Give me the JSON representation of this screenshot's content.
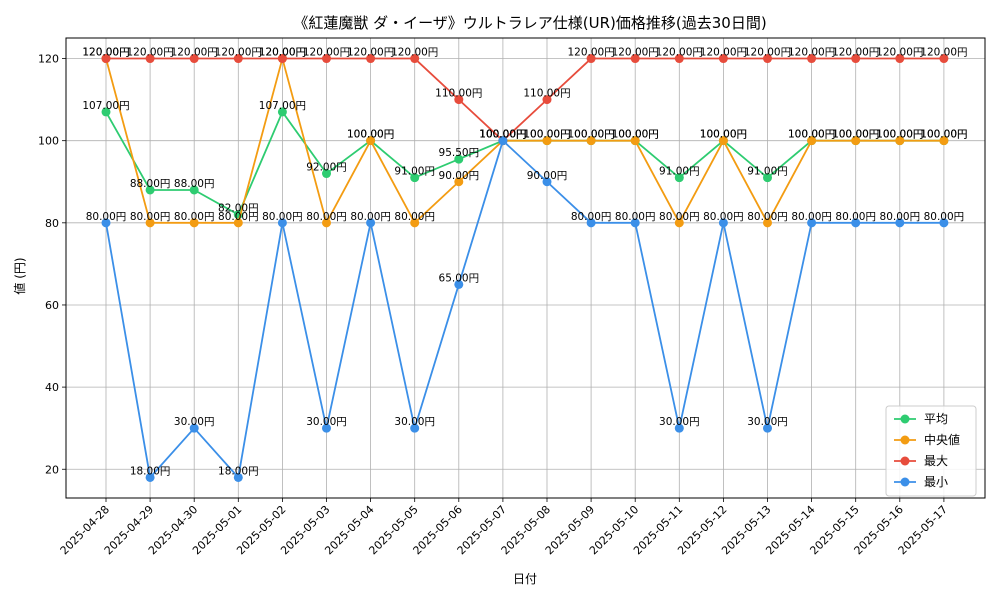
{
  "chart_data": {
    "type": "line",
    "title": "《紅蓮魔獣 ダ・イーザ》ウルトラレア仕様(UR)価格推移(過去30日間)",
    "xlabel": "日付",
    "ylabel": "値 (円)",
    "ylim": [
      13,
      125
    ],
    "yticks": [
      20,
      40,
      60,
      80,
      100,
      120
    ],
    "grid": true,
    "legend_position": "lower-right",
    "label_suffix": "円",
    "categories": [
      "2025-04-28",
      "2025-04-29",
      "2025-04-30",
      "2025-05-01",
      "2025-05-02",
      "2025-05-03",
      "2025-05-04",
      "2025-05-05",
      "2025-05-06",
      "2025-05-07",
      "2025-05-08",
      "2025-05-09",
      "2025-05-10",
      "2025-05-11",
      "2025-05-12",
      "2025-05-13",
      "2025-05-14",
      "2025-05-15",
      "2025-05-16",
      "2025-05-17"
    ],
    "series": [
      {
        "name": "平均",
        "color": "#2ecc71",
        "values": [
          107,
          88,
          88,
          82,
          107,
          92,
          100,
          91,
          95.5,
          100,
          100,
          100,
          100,
          91,
          100,
          91,
          100,
          100,
          100,
          100
        ]
      },
      {
        "name": "中央値",
        "color": "#f39c12",
        "values": [
          120,
          80,
          80,
          80,
          120,
          80,
          100,
          80,
          90,
          100,
          100,
          100,
          100,
          80,
          100,
          80,
          100,
          100,
          100,
          100
        ]
      },
      {
        "name": "最大",
        "color": "#e74c3c",
        "values": [
          120,
          120,
          120,
          120,
          120,
          120,
          120,
          120,
          110,
          100,
          110,
          120,
          120,
          120,
          120,
          120,
          120,
          120,
          120,
          120
        ]
      },
      {
        "name": "最小",
        "color": "#3b8fe8",
        "values": [
          80,
          18,
          30,
          18,
          80,
          30,
          80,
          30,
          65,
          100,
          90,
          80,
          80,
          30,
          80,
          30,
          80,
          80,
          80,
          80
        ]
      }
    ]
  }
}
